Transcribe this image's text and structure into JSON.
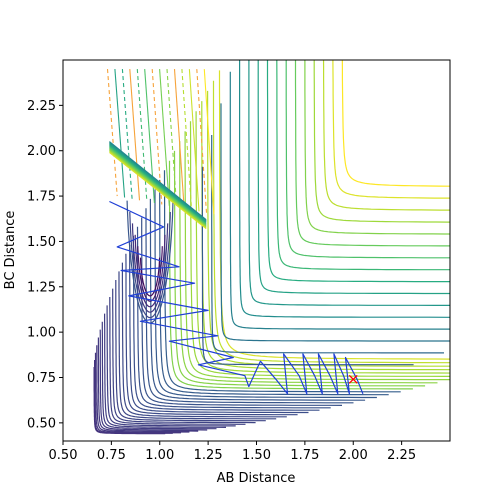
{
  "chart_data": {
    "type": "contour",
    "title": "",
    "xlabel": "AB Distance",
    "ylabel": "BC Distance",
    "xlim": [
      0.5,
      2.5
    ],
    "ylim": [
      0.4,
      2.5
    ],
    "xticks": [
      0.5,
      0.75,
      1.0,
      1.25,
      1.5,
      1.75,
      2.0,
      2.25
    ],
    "xtick_labels": [
      "0.50",
      "0.75",
      "1.00",
      "1.25",
      "1.50",
      "1.75",
      "2.00",
      "2.25"
    ],
    "yticks": [
      0.5,
      0.75,
      1.0,
      1.25,
      1.5,
      1.75,
      2.0,
      2.25
    ],
    "ytick_labels": [
      "0.50",
      "0.75",
      "1.00",
      "1.25",
      "1.50",
      "1.75",
      "2.00",
      "2.25"
    ],
    "grid": false,
    "colormap": "viridis",
    "surface": {
      "description": "potential energy surface, product valley along AB near BC 0.74",
      "contour_levels": 34,
      "valley_floor": [
        2.0,
        0.74
      ]
    },
    "trajectory": {
      "color": "#1f3fd6",
      "points": [
        [
          0.74,
          1.72
        ],
        [
          1.02,
          1.58
        ],
        [
          0.78,
          1.47
        ],
        [
          1.1,
          1.36
        ],
        [
          0.8,
          1.34
        ],
        [
          1.18,
          1.27
        ],
        [
          0.84,
          1.2
        ],
        [
          1.25,
          1.12
        ],
        [
          0.9,
          1.06
        ],
        [
          1.3,
          0.98
        ],
        [
          1.05,
          0.95
        ],
        [
          1.38,
          0.86
        ],
        [
          1.2,
          0.82
        ],
        [
          1.44,
          0.76
        ],
        [
          1.46,
          0.7
        ],
        [
          1.52,
          0.84
        ],
        [
          1.6,
          0.74
        ],
        [
          1.66,
          0.66
        ],
        [
          1.64,
          0.88
        ],
        [
          1.72,
          0.76
        ],
        [
          1.76,
          0.66
        ],
        [
          1.74,
          0.88
        ],
        [
          1.8,
          0.76
        ],
        [
          1.84,
          0.66
        ],
        [
          1.82,
          0.88
        ],
        [
          1.88,
          0.76
        ],
        [
          1.92,
          0.66
        ],
        [
          1.9,
          0.88
        ],
        [
          1.95,
          0.76
        ],
        [
          1.98,
          0.66
        ],
        [
          1.96,
          0.86
        ],
        [
          2.02,
          0.74
        ],
        [
          2.05,
          0.66
        ]
      ],
      "end_marker": {
        "x": 2.0,
        "y": 0.74,
        "symbol": "x",
        "color": "#ff0000"
      }
    }
  }
}
